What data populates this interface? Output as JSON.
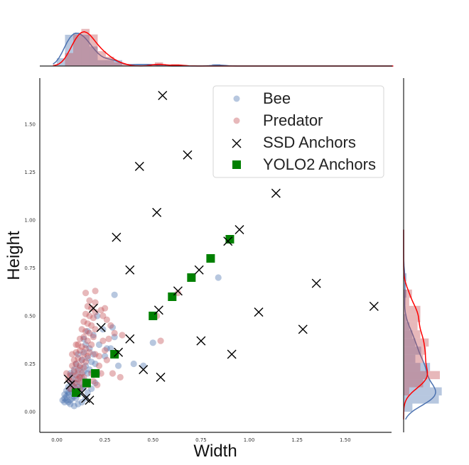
{
  "chart_data": {
    "type": "scatter",
    "title": "",
    "xlabel": "Width",
    "ylabel": "Height",
    "xlim": [
      -0.09,
      1.75
    ],
    "ylim": [
      -0.11,
      1.74
    ],
    "grid": false,
    "x_ticks": [
      "0.00",
      "0.25",
      "0.50",
      "0.75",
      "1.00",
      "1.25",
      "1.50"
    ],
    "x_tick_values": [
      0,
      0.25,
      0.5,
      0.75,
      1.0,
      1.25,
      1.5
    ],
    "y_ticks": [
      "0.00",
      "0.25",
      "0.50",
      "0.75",
      "1.00",
      "1.25",
      "1.50"
    ],
    "y_tick_values": [
      0,
      0.25,
      0.5,
      0.75,
      1.0,
      1.25,
      1.5
    ],
    "legend_position": "top-right",
    "colors": {
      "bee": "#4c72b0",
      "predator": "#c44e52",
      "ssd": "#000000",
      "yolo": "#008000",
      "bee_kde": "#4c72b0",
      "predator_kde": "#ff0000"
    },
    "series": [
      {
        "name": "Bee",
        "marker": "circle",
        "points": [
          [
            0.05,
            0.06
          ],
          [
            0.06,
            0.05
          ],
          [
            0.04,
            0.07
          ],
          [
            0.07,
            0.06
          ],
          [
            0.05,
            0.08
          ],
          [
            0.06,
            0.09
          ],
          [
            0.08,
            0.07
          ],
          [
            0.03,
            0.06
          ],
          [
            0.04,
            0.05
          ],
          [
            0.07,
            0.04
          ],
          [
            0.06,
            0.1
          ],
          [
            0.08,
            0.1
          ],
          [
            0.09,
            0.08
          ],
          [
            0.1,
            0.07
          ],
          [
            0.05,
            0.11
          ],
          [
            0.07,
            0.12
          ],
          [
            0.09,
            0.11
          ],
          [
            0.11,
            0.09
          ],
          [
            0.04,
            0.09
          ],
          [
            0.06,
            0.13
          ],
          [
            0.08,
            0.14
          ],
          [
            0.1,
            0.12
          ],
          [
            0.12,
            0.1
          ],
          [
            0.09,
            0.15
          ],
          [
            0.11,
            0.13
          ],
          [
            0.13,
            0.12
          ],
          [
            0.07,
            0.16
          ],
          [
            0.1,
            0.17
          ],
          [
            0.12,
            0.15
          ],
          [
            0.14,
            0.13
          ],
          [
            0.08,
            0.19
          ],
          [
            0.11,
            0.2
          ],
          [
            0.13,
            0.18
          ],
          [
            0.15,
            0.16
          ],
          [
            0.12,
            0.23
          ],
          [
            0.14,
            0.21
          ],
          [
            0.16,
            0.2
          ],
          [
            0.1,
            0.25
          ],
          [
            0.13,
            0.27
          ],
          [
            0.15,
            0.24
          ],
          [
            0.17,
            0.22
          ],
          [
            0.11,
            0.3
          ],
          [
            0.14,
            0.31
          ],
          [
            0.16,
            0.28
          ],
          [
            0.18,
            0.26
          ],
          [
            0.15,
            0.35
          ],
          [
            0.17,
            0.33
          ],
          [
            0.19,
            0.3
          ],
          [
            0.2,
            0.25
          ],
          [
            0.21,
            0.2
          ],
          [
            0.22,
            0.35
          ],
          [
            0.25,
            0.29
          ],
          [
            0.26,
            0.33
          ],
          [
            0.19,
            0.4
          ],
          [
            0.24,
            0.43
          ],
          [
            0.29,
            0.44
          ],
          [
            0.28,
            0.33
          ],
          [
            0.3,
            0.39
          ],
          [
            0.32,
            0.24
          ],
          [
            0.4,
            0.25
          ],
          [
            0.45,
            0.24
          ],
          [
            0.5,
            0.36
          ],
          [
            0.3,
            0.61
          ],
          [
            0.21,
            0.5
          ],
          [
            0.84,
            0.7
          ],
          [
            0.13,
            0.05
          ],
          [
            0.15,
            0.07
          ],
          [
            0.16,
            0.1
          ],
          [
            0.09,
            0.03
          ],
          [
            0.11,
            0.04
          ],
          [
            0.14,
            0.38
          ],
          [
            0.16,
            0.42
          ],
          [
            0.09,
            0.22
          ],
          [
            0.07,
            0.2
          ],
          [
            0.18,
            0.12
          ],
          [
            0.2,
            0.15
          ]
        ]
      },
      {
        "name": "Predator",
        "marker": "circle",
        "points": [
          [
            0.09,
            0.13
          ],
          [
            0.1,
            0.15
          ],
          [
            0.11,
            0.17
          ],
          [
            0.08,
            0.16
          ],
          [
            0.1,
            0.19
          ],
          [
            0.12,
            0.18
          ],
          [
            0.09,
            0.21
          ],
          [
            0.11,
            0.22
          ],
          [
            0.13,
            0.2
          ],
          [
            0.08,
            0.24
          ],
          [
            0.1,
            0.25
          ],
          [
            0.12,
            0.24
          ],
          [
            0.14,
            0.23
          ],
          [
            0.09,
            0.27
          ],
          [
            0.11,
            0.28
          ],
          [
            0.13,
            0.27
          ],
          [
            0.15,
            0.26
          ],
          [
            0.1,
            0.31
          ],
          [
            0.12,
            0.32
          ],
          [
            0.14,
            0.3
          ],
          [
            0.16,
            0.29
          ],
          [
            0.11,
            0.35
          ],
          [
            0.13,
            0.34
          ],
          [
            0.15,
            0.33
          ],
          [
            0.17,
            0.31
          ],
          [
            0.12,
            0.38
          ],
          [
            0.14,
            0.39
          ],
          [
            0.16,
            0.37
          ],
          [
            0.18,
            0.35
          ],
          [
            0.13,
            0.43
          ],
          [
            0.15,
            0.42
          ],
          [
            0.17,
            0.41
          ],
          [
            0.19,
            0.39
          ],
          [
            0.14,
            0.47
          ],
          [
            0.16,
            0.46
          ],
          [
            0.18,
            0.45
          ],
          [
            0.2,
            0.43
          ],
          [
            0.15,
            0.51
          ],
          [
            0.17,
            0.5
          ],
          [
            0.19,
            0.49
          ],
          [
            0.16,
            0.55
          ],
          [
            0.18,
            0.54
          ],
          [
            0.2,
            0.52
          ],
          [
            0.17,
            0.58
          ],
          [
            0.2,
            0.57
          ],
          [
            0.15,
            0.62
          ],
          [
            0.2,
            0.63
          ],
          [
            0.24,
            0.5
          ],
          [
            0.26,
            0.48
          ],
          [
            0.23,
            0.53
          ],
          [
            0.25,
            0.54
          ],
          [
            0.28,
            0.45
          ],
          [
            0.3,
            0.41
          ],
          [
            0.24,
            0.37
          ],
          [
            0.22,
            0.29
          ],
          [
            0.26,
            0.27
          ],
          [
            0.29,
            0.2
          ],
          [
            0.33,
            0.18
          ],
          [
            0.34,
            0.4
          ],
          [
            0.52,
            0.5
          ],
          [
            0.54,
            0.37
          ],
          [
            0.63,
            0.62
          ],
          [
            0.07,
            0.12
          ],
          [
            0.06,
            0.17
          ],
          [
            0.05,
            0.2
          ],
          [
            0.08,
            0.3
          ],
          [
            0.1,
            0.35
          ],
          [
            0.2,
            0.3
          ],
          [
            0.22,
            0.24
          ],
          [
            0.18,
            0.2
          ],
          [
            0.14,
            0.18
          ],
          [
            0.16,
            0.14
          ],
          [
            0.19,
            0.16
          ],
          [
            0.21,
            0.14
          ],
          [
            0.23,
            0.2
          ],
          [
            0.25,
            0.32
          ],
          [
            0.27,
            0.38
          ],
          [
            0.13,
            0.15
          ],
          [
            0.12,
            0.12
          ],
          [
            0.07,
            0.19
          ]
        ]
      },
      {
        "name": "SSD Anchors",
        "marker": "x",
        "points": [
          [
            0.55,
            1.65
          ],
          [
            0.68,
            1.34
          ],
          [
            0.43,
            1.28
          ],
          [
            0.52,
            1.04
          ],
          [
            1.14,
            1.14
          ],
          [
            0.31,
            0.91
          ],
          [
            0.95,
            0.95
          ],
          [
            0.89,
            0.89
          ],
          [
            0.38,
            0.74
          ],
          [
            0.74,
            0.74
          ],
          [
            0.63,
            0.63
          ],
          [
            1.35,
            0.67
          ],
          [
            0.53,
            0.53
          ],
          [
            1.05,
            0.52
          ],
          [
            1.65,
            0.55
          ],
          [
            0.19,
            0.54
          ],
          [
            0.23,
            0.44
          ],
          [
            0.38,
            0.38
          ],
          [
            0.32,
            0.31
          ],
          [
            0.75,
            0.37
          ],
          [
            1.28,
            0.43
          ],
          [
            0.91,
            0.3
          ],
          [
            0.45,
            0.22
          ],
          [
            0.54,
            0.18
          ],
          [
            0.06,
            0.17
          ],
          [
            0.07,
            0.14
          ],
          [
            0.13,
            0.1
          ],
          [
            0.15,
            0.07
          ],
          [
            0.17,
            0.06
          ]
        ]
      },
      {
        "name": "YOLO2 Anchors",
        "marker": "square",
        "points": [
          [
            0.1,
            0.1
          ],
          [
            0.155,
            0.15
          ],
          [
            0.2,
            0.2
          ],
          [
            0.3,
            0.3
          ],
          [
            0.5,
            0.5
          ],
          [
            0.6,
            0.6
          ],
          [
            0.7,
            0.7
          ],
          [
            0.8,
            0.8
          ],
          [
            0.9,
            0.9
          ]
        ]
      }
    ],
    "legend": [
      "Bee",
      "Predator",
      "SSD Anchors",
      "YOLO2 Anchors"
    ]
  }
}
